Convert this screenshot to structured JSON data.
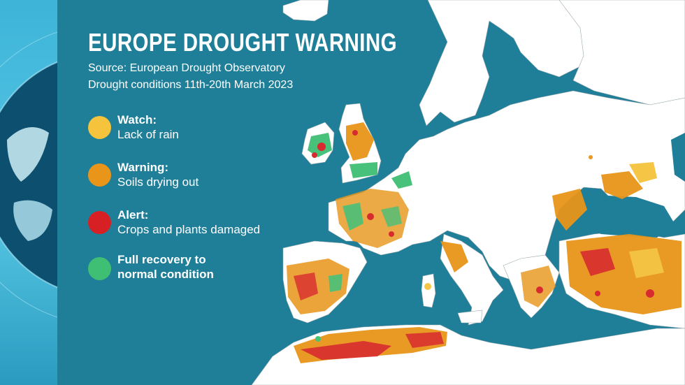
{
  "title": "EUROPE DROUGHT WARNING",
  "source": "Source: European Drought Observatory",
  "period": "Drought conditions 11th-20th March 2023",
  "colors": {
    "sea": "#1f7f99",
    "land": "#ffffff",
    "watch": "#f5c33c",
    "warning": "#e8951a",
    "alert": "#d62024",
    "recovery": "#3fbf73"
  },
  "legend": [
    {
      "key": "watch",
      "label": "Watch:",
      "description": "Lack of rain"
    },
    {
      "key": "warning",
      "label": "Warning:",
      "description": "Soils drying out"
    },
    {
      "key": "alert",
      "label": "Alert:",
      "description": "Crops and plants damaged"
    },
    {
      "key": "recovery",
      "label": "Full recovery to",
      "description": "normal condition"
    }
  ]
}
